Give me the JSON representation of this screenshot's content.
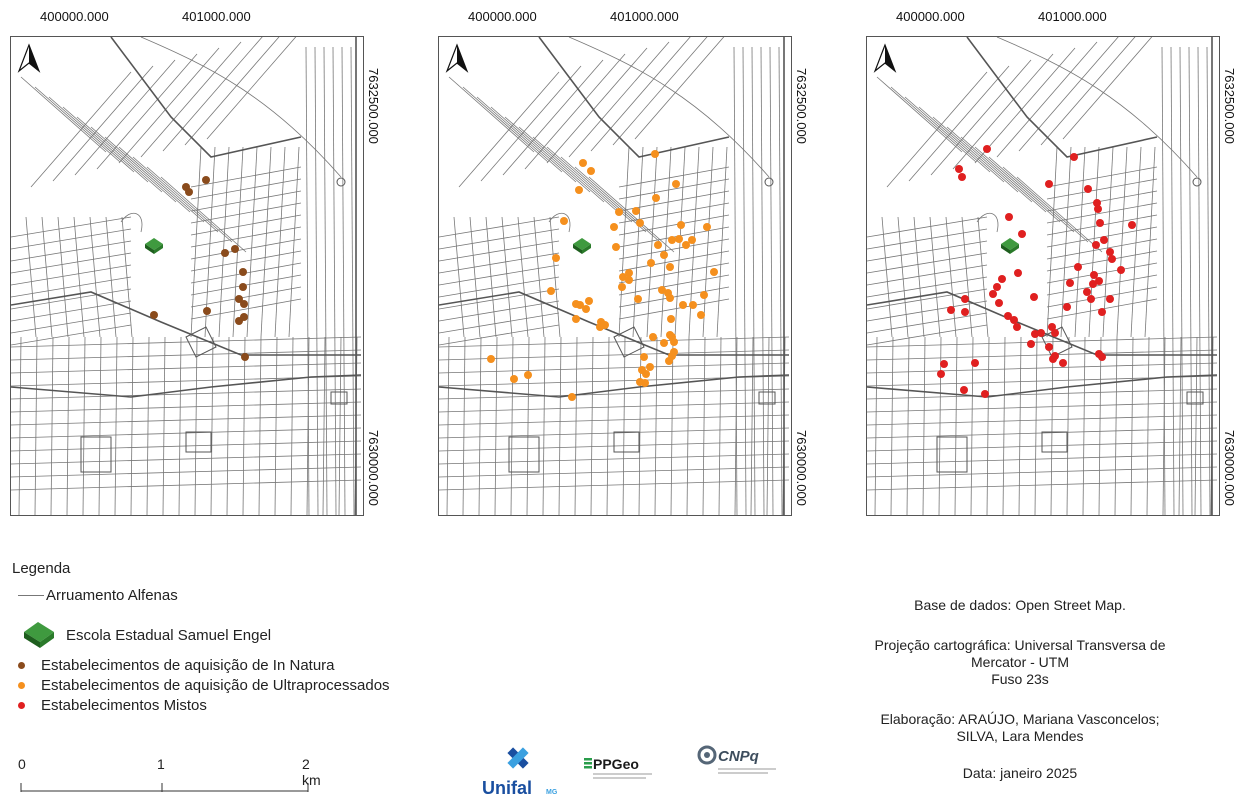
{
  "panels": [
    {
      "id": "in-natura",
      "x_ticks": [
        "400000.000",
        "401000.000"
      ],
      "y_ticks": [
        "7632500.000",
        "7630000.000"
      ],
      "point_color": "#8a4b1c",
      "points": [
        [
          175,
          150
        ],
        [
          178,
          155
        ],
        [
          195,
          143
        ],
        [
          214,
          216
        ],
        [
          224,
          212
        ],
        [
          232,
          235
        ],
        [
          232,
          250
        ],
        [
          228,
          262
        ],
        [
          233,
          267
        ],
        [
          228,
          284
        ],
        [
          196,
          274
        ],
        [
          143,
          278
        ],
        [
          233,
          280
        ],
        [
          234,
          320
        ]
      ]
    },
    {
      "id": "ultraprocessados",
      "x_ticks": [
        "400000.000",
        "401000.000"
      ],
      "y_ticks": [
        "7632500.000",
        "7630000.000"
      ],
      "point_color": "#f5901e",
      "points": [
        [
          144,
          126
        ],
        [
          152,
          134
        ],
        [
          216,
          117
        ],
        [
          237,
          147
        ],
        [
          140,
          153
        ],
        [
          125,
          184
        ],
        [
          175,
          190
        ],
        [
          180,
          175
        ],
        [
          197,
          174
        ],
        [
          217,
          161
        ],
        [
          201,
          186
        ],
        [
          242,
          188
        ],
        [
          177,
          210
        ],
        [
          219,
          208
        ],
        [
          268,
          190
        ],
        [
          233,
          203
        ],
        [
          240,
          202
        ],
        [
          253,
          203
        ],
        [
          247,
          208
        ],
        [
          212,
          226
        ],
        [
          117,
          221
        ],
        [
          190,
          236
        ],
        [
          184,
          240
        ],
        [
          225,
          218
        ],
        [
          231,
          230
        ],
        [
          275,
          235
        ],
        [
          150,
          264
        ],
        [
          141,
          268
        ],
        [
          147,
          272
        ],
        [
          112,
          254
        ],
        [
          137,
          282
        ],
        [
          162,
          285
        ],
        [
          183,
          250
        ],
        [
          190,
          243
        ],
        [
          199,
          262
        ],
        [
          229,
          256
        ],
        [
          223,
          253
        ],
        [
          231,
          261
        ],
        [
          265,
          258
        ],
        [
          244,
          268
        ],
        [
          254,
          268
        ],
        [
          262,
          278
        ],
        [
          232,
          282
        ],
        [
          214,
          300
        ],
        [
          205,
          320
        ],
        [
          211,
          330
        ],
        [
          225,
          306
        ],
        [
          235,
          305
        ],
        [
          231,
          298
        ],
        [
          233,
          300
        ],
        [
          233,
          319
        ],
        [
          203,
          333
        ],
        [
          201,
          345
        ],
        [
          52,
          322
        ],
        [
          89,
          338
        ],
        [
          75,
          342
        ],
        [
          133,
          360
        ],
        [
          166,
          288
        ],
        [
          161,
          290
        ],
        [
          137,
          267
        ],
        [
          207,
          337
        ],
        [
          206,
          346
        ],
        [
          235,
          315
        ],
        [
          230,
          324
        ]
      ]
    },
    {
      "id": "mistos",
      "x_ticks": [
        "400000.000",
        "401000.000"
      ],
      "y_ticks": [
        "7632500.000",
        "7630000.000"
      ],
      "point_color": "#e02020",
      "points": [
        [
          92,
          132
        ],
        [
          95,
          140
        ],
        [
          120,
          112
        ],
        [
          182,
          147
        ],
        [
          142,
          180
        ],
        [
          155,
          197
        ],
        [
          207,
          120
        ],
        [
          221,
          152
        ],
        [
          230,
          166
        ],
        [
          231,
          172
        ],
        [
          233,
          186
        ],
        [
          229,
          208
        ],
        [
          237,
          203
        ],
        [
          265,
          188
        ],
        [
          243,
          215
        ],
        [
          245,
          222
        ],
        [
          211,
          230
        ],
        [
          151,
          236
        ],
        [
          135,
          242
        ],
        [
          130,
          250
        ],
        [
          232,
          244
        ],
        [
          226,
          247
        ],
        [
          227,
          238
        ],
        [
          254,
          233
        ],
        [
          203,
          246
        ],
        [
          220,
          255
        ],
        [
          224,
          262
        ],
        [
          243,
          262
        ],
        [
          235,
          275
        ],
        [
          200,
          270
        ],
        [
          167,
          260
        ],
        [
          126,
          257
        ],
        [
          132,
          266
        ],
        [
          84,
          273
        ],
        [
          98,
          275
        ],
        [
          98,
          262
        ],
        [
          141,
          279
        ],
        [
          147,
          283
        ],
        [
          150,
          290
        ],
        [
          174,
          296
        ],
        [
          168,
          297
        ],
        [
          182,
          310
        ],
        [
          185,
          290
        ],
        [
          188,
          296
        ],
        [
          186,
          322
        ],
        [
          188,
          319
        ],
        [
          196,
          326
        ],
        [
          232,
          317
        ],
        [
          235,
          320
        ],
        [
          77,
          327
        ],
        [
          108,
          326
        ],
        [
          74,
          337
        ],
        [
          97,
          353
        ],
        [
          118,
          357
        ],
        [
          164,
          307
        ]
      ]
    }
  ],
  "north_arrow_label": "north-arrow",
  "school_color": "#2e7d32",
  "legend": {
    "title": "Legenda",
    "items": [
      {
        "label": "Arruamento Alfenas",
        "kind": "line"
      },
      {
        "label": "Escola Estadual Samuel Engel",
        "kind": "school"
      },
      {
        "label": "Estabelecimentos de aquisição de In Natura",
        "kind": "dot",
        "color": "#8a4b1c"
      },
      {
        "label": "Estabelecimentos de aquisição de Ultraprocessados",
        "kind": "dot",
        "color": "#f5901e"
      },
      {
        "label": "Estabelecimentos Mistos",
        "kind": "dot",
        "color": "#e02020"
      }
    ]
  },
  "scale_bar": {
    "labels": [
      "0",
      "1",
      "2 km"
    ]
  },
  "info": {
    "source": "Base de dados: Open Street Map.",
    "projection_1": "Projeção cartográfica: Universal Transversa de",
    "projection_2": "Mercator - UTM",
    "projection_3": "Fuso 23s",
    "author_1": "Elaboração: ARAÚJO, Mariana Vasconcelos;",
    "author_2": "SILVA, Lara Mendes",
    "date": "Data: janeiro 2025"
  },
  "logos": {
    "unifal": "Unifal",
    "unifal_sub": "MG",
    "ppgeo": "PPGeo",
    "cnpq": "CNPq"
  }
}
